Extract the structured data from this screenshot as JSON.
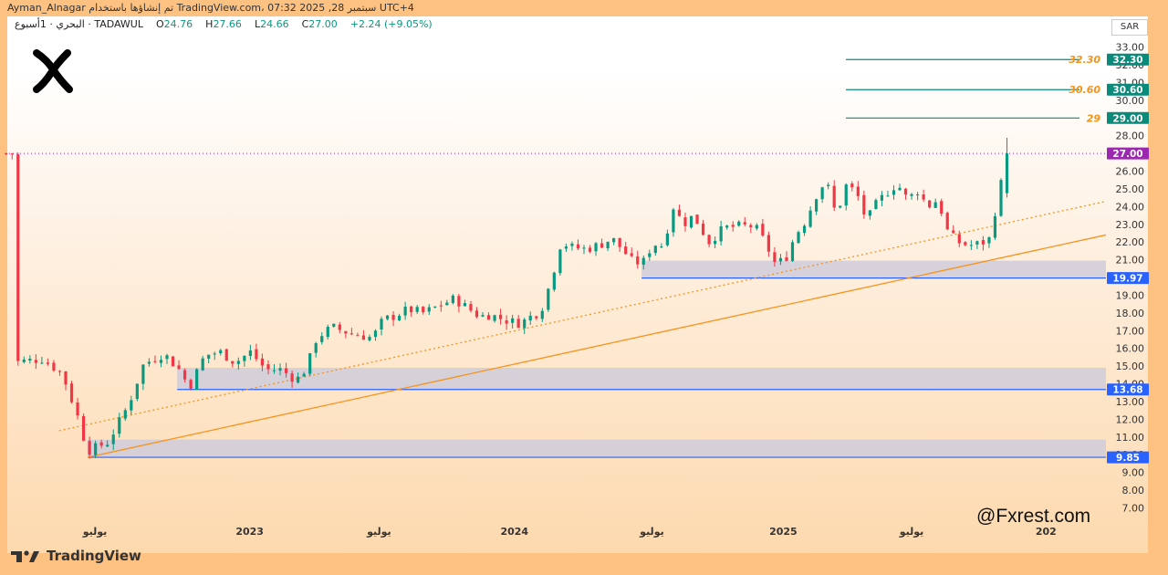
{
  "header": {
    "line": "Ayman_Alnagar تم إنشاؤها باستخدام TradingView.com، سبتمبر 28, 2025 07:32 UTC+4",
    "symbol": "البحري · 1أسبوع · TADAWUL",
    "open_label": "O",
    "open": "24.76",
    "high_label": "H",
    "high": "27.66",
    "low_label": "L",
    "low": "24.66",
    "close_label": "C",
    "close": "27.00",
    "change": "+2.24 (+9.05%)"
  },
  "currency": "SAR",
  "branding": {
    "logo_text": "TradingView",
    "watermark": "@Fxrest.com"
  },
  "colors": {
    "up": "#089981",
    "down": "#F23645",
    "trend": "#F7931A",
    "zone": "#CFCBDA",
    "support": "#2962FF",
    "target": "#0A8A7A",
    "last_price": "#9C27B0"
  },
  "chart_data": {
    "type": "candlestick",
    "ylim": [
      6.3,
      33.6
    ],
    "yticks": [
      "33.00",
      "32.00",
      "31.00",
      "30.00",
      "29.00",
      "28.00",
      "26.00",
      "25.00",
      "24.00",
      "23.00",
      "22.00",
      "21.00",
      "20.00",
      "19.00",
      "18.00",
      "17.00",
      "16.00",
      "15.00",
      "14.00",
      "13.00",
      "12.00",
      "11.00",
      "10.00",
      "9.00",
      "8.00",
      "7.00"
    ],
    "xticks": [
      {
        "label": "يوليو",
        "t": 0.0
      },
      {
        "label": "2023",
        "t": 0.152
      },
      {
        "label": "يوليو",
        "t": 0.279
      },
      {
        "label": "2024",
        "t": 0.412
      },
      {
        "label": "يوليو",
        "t": 0.547
      },
      {
        "label": "2025",
        "t": 0.676
      },
      {
        "label": "يوليو",
        "t": 0.802
      },
      {
        "label": "202",
        "t": 0.934
      }
    ],
    "last_price": 27.0,
    "last_price_label": "27.00",
    "targets": [
      {
        "value": 32.3,
        "label": "32.30",
        "tag": "32.30"
      },
      {
        "value": 30.6,
        "label": "30.60",
        "tag": "30.60"
      },
      {
        "value": 29.0,
        "label": "29",
        "tag": "29.00"
      }
    ],
    "supports": [
      {
        "value": 19.97,
        "label": "19.97",
        "zone": [
          19.97,
          20.95
        ],
        "from_t": 0.544
      },
      {
        "value": 13.68,
        "label": "13.68",
        "zone": [
          13.68,
          14.9
        ],
        "from_t": 0.088
      },
      {
        "value": 9.85,
        "label": "9.85",
        "zone": [
          9.85,
          10.85
        ],
        "from_t": 0.0
      }
    ],
    "trendlines": [
      {
        "style": "solid",
        "from": {
          "t": 0.0,
          "value": 9.85
        },
        "to": {
          "t": 1.0,
          "value": 22.4
        }
      },
      {
        "style": "dotted",
        "from": {
          "t": -0.028,
          "value": 11.35
        },
        "to": {
          "t": 1.0,
          "value": 24.3
        }
      }
    ],
    "anchor_points": [
      [
        -0.074,
        15.2
      ],
      [
        -0.045,
        15.4
      ],
      [
        -0.025,
        14.6
      ],
      [
        -0.01,
        12.2
      ],
      [
        0.0,
        10.2
      ],
      [
        0.02,
        10.7
      ],
      [
        0.04,
        12.8
      ],
      [
        0.055,
        15.1
      ],
      [
        0.075,
        15.7
      ],
      [
        0.09,
        14.8
      ],
      [
        0.1,
        13.8
      ],
      [
        0.115,
        15.6
      ],
      [
        0.13,
        15.8
      ],
      [
        0.145,
        15.2
      ],
      [
        0.16,
        15.8
      ],
      [
        0.175,
        14.8
      ],
      [
        0.19,
        14.8
      ],
      [
        0.205,
        14.2
      ],
      [
        0.215,
        14.9
      ],
      [
        0.225,
        16.6
      ],
      [
        0.24,
        17.2
      ],
      [
        0.26,
        16.8
      ],
      [
        0.28,
        16.6
      ],
      [
        0.29,
        17.6
      ],
      [
        0.3,
        17.8
      ],
      [
        0.315,
        18.2
      ],
      [
        0.33,
        18.0
      ],
      [
        0.345,
        18.4
      ],
      [
        0.36,
        18.8
      ],
      [
        0.375,
        18.2
      ],
      [
        0.385,
        17.8
      ],
      [
        0.395,
        17.9
      ],
      [
        0.41,
        17.6
      ],
      [
        0.425,
        17.4
      ],
      [
        0.435,
        17.8
      ],
      [
        0.445,
        18.1
      ],
      [
        0.455,
        19.8
      ],
      [
        0.465,
        22.0
      ],
      [
        0.475,
        21.7
      ],
      [
        0.49,
        21.6
      ],
      [
        0.505,
        21.9
      ],
      [
        0.515,
        22.2
      ],
      [
        0.525,
        21.6
      ],
      [
        0.535,
        20.9
      ],
      [
        0.545,
        20.8
      ],
      [
        0.555,
        21.9
      ],
      [
        0.565,
        21.8
      ],
      [
        0.575,
        24.0
      ],
      [
        0.585,
        23.0
      ],
      [
        0.595,
        23.5
      ],
      [
        0.61,
        22.0
      ],
      [
        0.625,
        22.8
      ],
      [
        0.64,
        22.9
      ],
      [
        0.655,
        22.9
      ],
      [
        0.665,
        22.0
      ],
      [
        0.675,
        20.8
      ],
      [
        0.685,
        21.0
      ],
      [
        0.695,
        22.4
      ],
      [
        0.705,
        23.2
      ],
      [
        0.715,
        24.6
      ],
      [
        0.725,
        25.5
      ],
      [
        0.735,
        23.5
      ],
      [
        0.745,
        25.2
      ],
      [
        0.755,
        24.8
      ],
      [
        0.765,
        23.2
      ],
      [
        0.775,
        24.2
      ],
      [
        0.785,
        24.8
      ],
      [
        0.795,
        25.3
      ],
      [
        0.805,
        24.4
      ],
      [
        0.815,
        24.9
      ],
      [
        0.825,
        24.0
      ],
      [
        0.835,
        24.4
      ],
      [
        0.845,
        22.5
      ],
      [
        0.855,
        22.0
      ],
      [
        0.865,
        21.8
      ],
      [
        0.875,
        21.9
      ],
      [
        0.885,
        22.1
      ],
      [
        0.895,
        24.76
      ],
      [
        0.903,
        27.0
      ]
    ],
    "x_span": [
      -0.08,
      0.905
    ]
  }
}
